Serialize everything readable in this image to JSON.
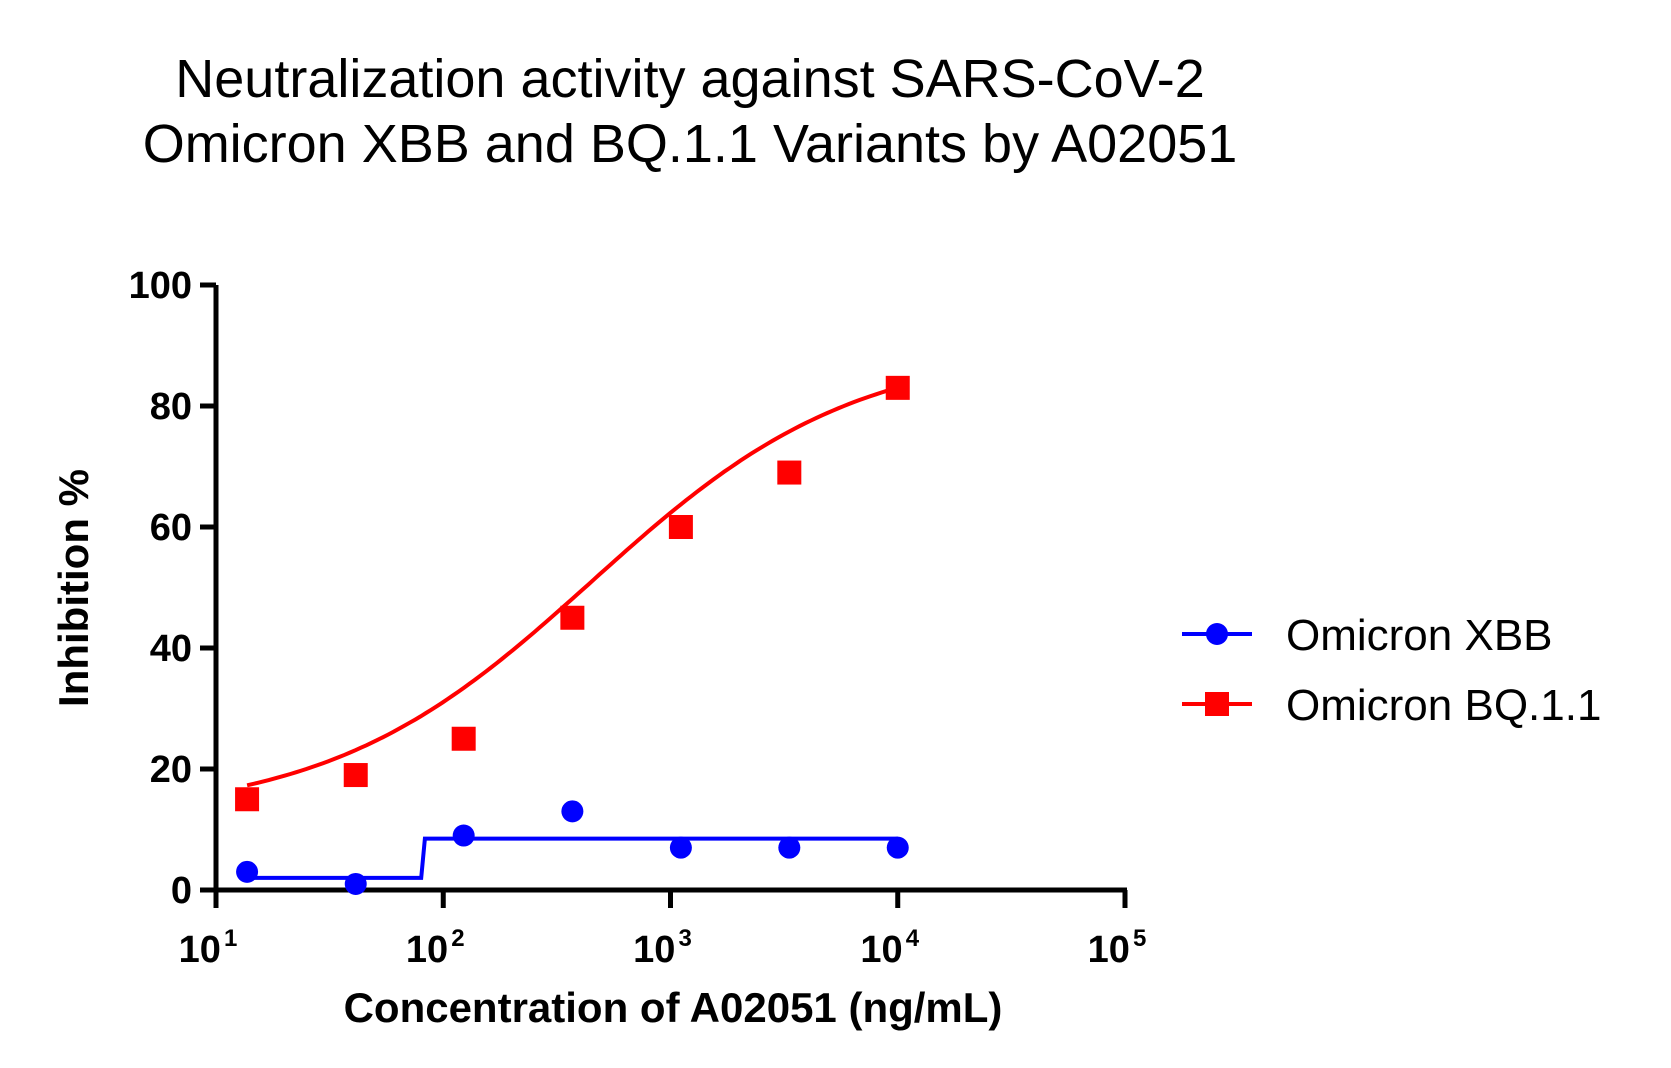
{
  "chart_data": {
    "type": "scatter",
    "title_lines": [
      "Neutralization activity against SARS-CoV-2",
      "Omicron XBB and BQ.1.1 Variants by A02051"
    ],
    "xlabel": "Concentration of A02051 (ng/mL)",
    "ylabel": "Inhibition %",
    "x_scale": "log",
    "xlim": [
      10,
      100000
    ],
    "ylim": [
      0,
      100
    ],
    "x_ticks": [
      {
        "base": "10",
        "exp": "1"
      },
      {
        "base": "10",
        "exp": "2"
      },
      {
        "base": "10",
        "exp": "3"
      },
      {
        "base": "10",
        "exp": "4"
      },
      {
        "base": "10",
        "exp": "5"
      }
    ],
    "y_ticks": [
      "0",
      "20",
      "40",
      "60",
      "80",
      "100"
    ],
    "grid": false,
    "legend_position": "right",
    "series": [
      {
        "name": "Omicron XBB",
        "color": "#0000ff",
        "marker": "circle",
        "x": [
          13.7,
          41.2,
          123,
          370,
          1111,
          3333,
          10000
        ],
        "y": [
          3,
          1,
          9,
          13,
          7,
          7,
          7
        ],
        "fit": "step",
        "fit_x": [
          13.7,
          80,
          83,
          10000
        ],
        "fit_y": [
          2,
          2,
          8.5,
          8.5
        ]
      },
      {
        "name": "Omicron BQ.1.1",
        "color": "#ff0000",
        "marker": "square",
        "x": [
          13.7,
          41.2,
          123,
          370,
          1111,
          3333,
          10000
        ],
        "y": [
          15,
          19,
          25,
          45,
          60,
          69,
          83
        ],
        "fit": "sigmoid",
        "fit_params": {
          "bottom": 12,
          "top": 90,
          "ec50": 450,
          "hill": 0.75
        }
      }
    ]
  }
}
